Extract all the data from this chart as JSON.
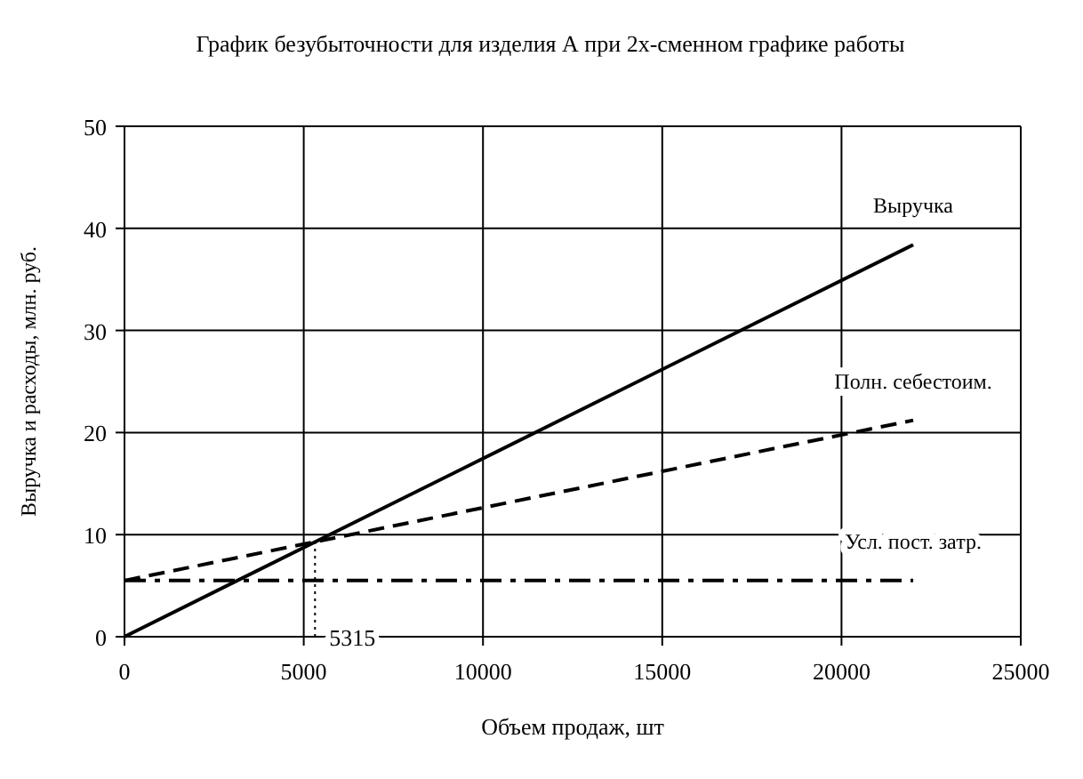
{
  "chart_data": {
    "type": "line",
    "title": "График безубыточности для изделия А при 2х-сменном графике работы",
    "xlabel": "Объем продаж, шт",
    "ylabel": "Выручка и расходы, млн. руб.",
    "xlim": [
      0,
      25000
    ],
    "xticks": [
      0,
      5000,
      10000,
      15000,
      20000,
      25000
    ],
    "ylim": [
      0,
      50
    ],
    "yticks": [
      0,
      10,
      20,
      30,
      40,
      50
    ],
    "grid": true,
    "marker": "none",
    "series": [
      {
        "name": "Выручка",
        "color": "#000000",
        "x": [
          0,
          22000
        ],
        "values": [
          0,
          38.4
        ],
        "line_style": "solid"
      },
      {
        "name": "Полн. себестоим.",
        "color": "#000000",
        "x": [
          0,
          22000
        ],
        "values": [
          5.5,
          21.2
        ],
        "line_style": "dashed"
      },
      {
        "name": "Усл. пост. затр.",
        "color": "#000000",
        "x": [
          0,
          22000
        ],
        "values": [
          5.5,
          5.5
        ],
        "line_style": "dashdot"
      },
      {
        "color": "#000000",
        "x": [
          5315,
          5315
        ],
        "values": [
          0,
          9.3
        ],
        "line_style": "dotted"
      }
    ],
    "annotations": [
      {
        "text": "5315",
        "x": 5315,
        "y": 0
      }
    ]
  }
}
